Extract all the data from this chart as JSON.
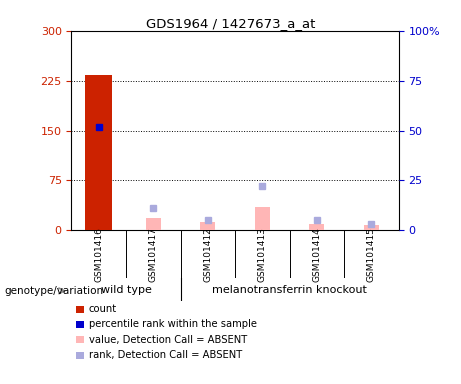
{
  "title": "GDS1964 / 1427673_a_at",
  "samples": [
    "GSM101416",
    "GSM101417",
    "GSM101412",
    "GSM101413",
    "GSM101414",
    "GSM101415"
  ],
  "left_yaxis": {
    "min": 0,
    "max": 300,
    "ticks": [
      0,
      75,
      150,
      225,
      300
    ],
    "color": "#CC2200"
  },
  "right_yaxis": {
    "min": 0,
    "max": 100,
    "ticks": [
      0,
      25,
      50,
      75,
      100
    ],
    "color": "#0000CC",
    "labels": [
      "0",
      "25",
      "50",
      "75",
      "100%"
    ]
  },
  "count_bars": [
    233,
    0,
    0,
    0,
    0,
    0
  ],
  "percentile_rank_dots": [
    52,
    null,
    null,
    null,
    null,
    null
  ],
  "absent_value_bars": [
    null,
    18,
    12,
    35,
    10,
    8
  ],
  "absent_rank_dots": [
    null,
    11,
    5,
    22,
    5,
    3
  ],
  "colors": {
    "count_bar": "#CC2200",
    "percentile_dot": "#0000CC",
    "absent_value_bar": "#FFB6B6",
    "absent_rank_dot": "#AAAADD",
    "bg_plot": "#FFFFFF",
    "sample_box": "#CCCCCC",
    "group_box": "#66EE66"
  },
  "legend": [
    {
      "color": "#CC2200",
      "label": "count"
    },
    {
      "color": "#0000CC",
      "label": "percentile rank within the sample"
    },
    {
      "color": "#FFB6B6",
      "label": "value, Detection Call = ABSENT"
    },
    {
      "color": "#AAAADD",
      "label": "rank, Detection Call = ABSENT"
    }
  ],
  "genotype_label": "genotype/variation",
  "wt_label": "wild type",
  "mt_label": "melanotransferrin knockout",
  "wt_samples": [
    0,
    1
  ],
  "mt_samples": [
    2,
    3,
    4,
    5
  ]
}
